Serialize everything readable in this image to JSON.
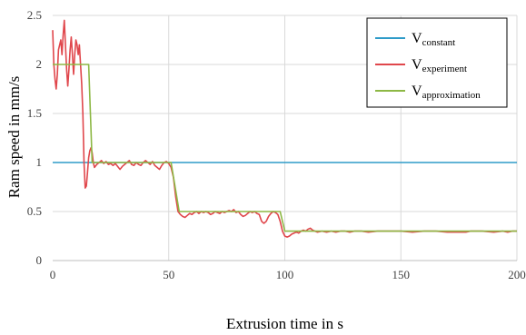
{
  "chart_data": {
    "type": "line",
    "xlabel": "Extrusion time in s",
    "ylabel": "Ram speed in mm/s",
    "xlim": [
      0,
      200
    ],
    "ylim": [
      0,
      2.5
    ],
    "x_ticks": [
      "0",
      "50",
      "100",
      "150",
      "200"
    ],
    "y_ticks": [
      "0",
      "0.5",
      "1",
      "1.5",
      "2",
      "2.5"
    ],
    "grid": "horizontal",
    "legend_placement": "top-right",
    "series": [
      {
        "name": "V",
        "subscript": "constant",
        "color": "#2E9BC8",
        "points": [
          [
            0,
            1.0
          ],
          [
            200,
            1.0
          ]
        ]
      },
      {
        "name": "V",
        "subscript": "experiment",
        "color": "#E0474C",
        "points": [
          [
            0,
            2.35
          ],
          [
            0.5,
            2.0
          ],
          [
            1.0,
            1.85
          ],
          [
            1.5,
            1.75
          ],
          [
            2.0,
            1.9
          ],
          [
            2.5,
            2.15
          ],
          [
            3.0,
            2.2
          ],
          [
            3.5,
            2.25
          ],
          [
            4.0,
            2.1
          ],
          [
            4.5,
            2.3
          ],
          [
            5.0,
            2.45
          ],
          [
            5.5,
            2.2
          ],
          [
            6.0,
            1.95
          ],
          [
            6.5,
            1.78
          ],
          [
            7.0,
            1.95
          ],
          [
            7.5,
            2.15
          ],
          [
            8.0,
            2.28
          ],
          [
            8.5,
            2.1
          ],
          [
            9.0,
            1.9
          ],
          [
            9.5,
            2.1
          ],
          [
            10.0,
            2.25
          ],
          [
            10.5,
            2.2
          ],
          [
            11.0,
            2.1
          ],
          [
            11.5,
            2.2
          ],
          [
            12.0,
            2.0
          ],
          [
            12.5,
            1.8
          ],
          [
            13.0,
            1.5
          ],
          [
            13.5,
            1.0
          ],
          [
            14.0,
            0.74
          ],
          [
            14.5,
            0.76
          ],
          [
            15.0,
            0.9
          ],
          [
            15.5,
            1.05
          ],
          [
            16.0,
            1.12
          ],
          [
            16.5,
            1.15
          ],
          [
            17.0,
            1.1
          ],
          [
            17.5,
            1.0
          ],
          [
            18.0,
            0.95
          ],
          [
            19.0,
            0.98
          ],
          [
            20.0,
            1.0
          ],
          [
            21.0,
            1.02
          ],
          [
            22.0,
            0.99
          ],
          [
            23.0,
            1.01
          ],
          [
            24.0,
            0.98
          ],
          [
            25.0,
            0.99
          ],
          [
            26.0,
            0.97
          ],
          [
            27.0,
            0.99
          ],
          [
            28.0,
            0.96
          ],
          [
            29.0,
            0.93
          ],
          [
            30.0,
            0.96
          ],
          [
            31.0,
            0.98
          ],
          [
            32.0,
            1.0
          ],
          [
            33.0,
            1.02
          ],
          [
            34.0,
            0.98
          ],
          [
            35.0,
            0.97
          ],
          [
            36.0,
            1.0
          ],
          [
            37.0,
            0.98
          ],
          [
            38.0,
            0.97
          ],
          [
            39.0,
            1.0
          ],
          [
            40.0,
            1.02
          ],
          [
            41.0,
            1.0
          ],
          [
            42.0,
            0.98
          ],
          [
            43.0,
            1.01
          ],
          [
            44.0,
            0.97
          ],
          [
            45.0,
            0.95
          ],
          [
            46.0,
            0.93
          ],
          [
            47.0,
            0.97
          ],
          [
            48.0,
            1.0
          ],
          [
            49.0,
            1.01
          ],
          [
            50.0,
            0.99
          ],
          [
            51.0,
            0.95
          ],
          [
            52.0,
            0.85
          ],
          [
            53.0,
            0.65
          ],
          [
            54.0,
            0.5
          ],
          [
            55.0,
            0.47
          ],
          [
            56.0,
            0.45
          ],
          [
            57.0,
            0.44
          ],
          [
            58.0,
            0.46
          ],
          [
            59.0,
            0.48
          ],
          [
            60.0,
            0.47
          ],
          [
            61.0,
            0.49
          ],
          [
            62.0,
            0.5
          ],
          [
            63.0,
            0.48
          ],
          [
            64.0,
            0.5
          ],
          [
            65.0,
            0.49
          ],
          [
            66.0,
            0.5
          ],
          [
            67.0,
            0.49
          ],
          [
            68.0,
            0.47
          ],
          [
            69.0,
            0.48
          ],
          [
            70.0,
            0.5
          ],
          [
            71.0,
            0.49
          ],
          [
            72.0,
            0.48
          ],
          [
            73.0,
            0.5
          ],
          [
            74.0,
            0.49
          ],
          [
            75.0,
            0.5
          ],
          [
            76.0,
            0.51
          ],
          [
            77.0,
            0.5
          ],
          [
            78.0,
            0.52
          ],
          [
            79.0,
            0.49
          ],
          [
            80.0,
            0.5
          ],
          [
            81.0,
            0.47
          ],
          [
            82.0,
            0.45
          ],
          [
            83.0,
            0.46
          ],
          [
            84.0,
            0.48
          ],
          [
            85.0,
            0.5
          ],
          [
            86.0,
            0.49
          ],
          [
            87.0,
            0.5
          ],
          [
            88.0,
            0.48
          ],
          [
            89.0,
            0.47
          ],
          [
            90.0,
            0.4
          ],
          [
            91.0,
            0.38
          ],
          [
            92.0,
            0.4
          ],
          [
            93.0,
            0.45
          ],
          [
            94.0,
            0.48
          ],
          [
            95.0,
            0.5
          ],
          [
            96.0,
            0.49
          ],
          [
            97.0,
            0.47
          ],
          [
            98.0,
            0.4
          ],
          [
            99.0,
            0.3
          ],
          [
            100.0,
            0.25
          ],
          [
            101.0,
            0.24
          ],
          [
            102.0,
            0.25
          ],
          [
            103.0,
            0.27
          ],
          [
            104.0,
            0.28
          ],
          [
            105.0,
            0.29
          ],
          [
            106.0,
            0.28
          ],
          [
            107.0,
            0.3
          ],
          [
            108.0,
            0.31
          ],
          [
            109.0,
            0.3
          ],
          [
            110.0,
            0.32
          ],
          [
            111.0,
            0.33
          ],
          [
            112.0,
            0.31
          ],
          [
            113.0,
            0.3
          ],
          [
            114.0,
            0.29
          ],
          [
            116.0,
            0.3
          ],
          [
            118.0,
            0.29
          ],
          [
            120.0,
            0.3
          ],
          [
            122.0,
            0.29
          ],
          [
            124.0,
            0.3
          ],
          [
            126.0,
            0.3
          ],
          [
            128.0,
            0.29
          ],
          [
            130.0,
            0.3
          ],
          [
            133.0,
            0.3
          ],
          [
            136.0,
            0.29
          ],
          [
            140.0,
            0.3
          ],
          [
            145.0,
            0.3
          ],
          [
            150.0,
            0.3
          ],
          [
            155.0,
            0.29
          ],
          [
            160.0,
            0.3
          ],
          [
            165.0,
            0.3
          ],
          [
            170.0,
            0.29
          ],
          [
            175.0,
            0.29
          ],
          [
            178.0,
            0.29
          ],
          [
            180.0,
            0.3
          ],
          [
            185.0,
            0.3
          ],
          [
            190.0,
            0.29
          ],
          [
            194.0,
            0.3
          ],
          [
            196.0,
            0.29
          ],
          [
            198.0,
            0.3
          ],
          [
            200.0,
            0.3
          ]
        ]
      },
      {
        "name": "V",
        "subscript": "approximation",
        "color": "#8DB845",
        "points": [
          [
            0,
            2.0
          ],
          [
            15.5,
            2.0
          ],
          [
            17.0,
            1.0
          ],
          [
            51.0,
            1.0
          ],
          [
            54.5,
            0.5
          ],
          [
            98.0,
            0.5
          ],
          [
            100.0,
            0.3
          ],
          [
            200.0,
            0.3
          ]
        ]
      }
    ]
  }
}
